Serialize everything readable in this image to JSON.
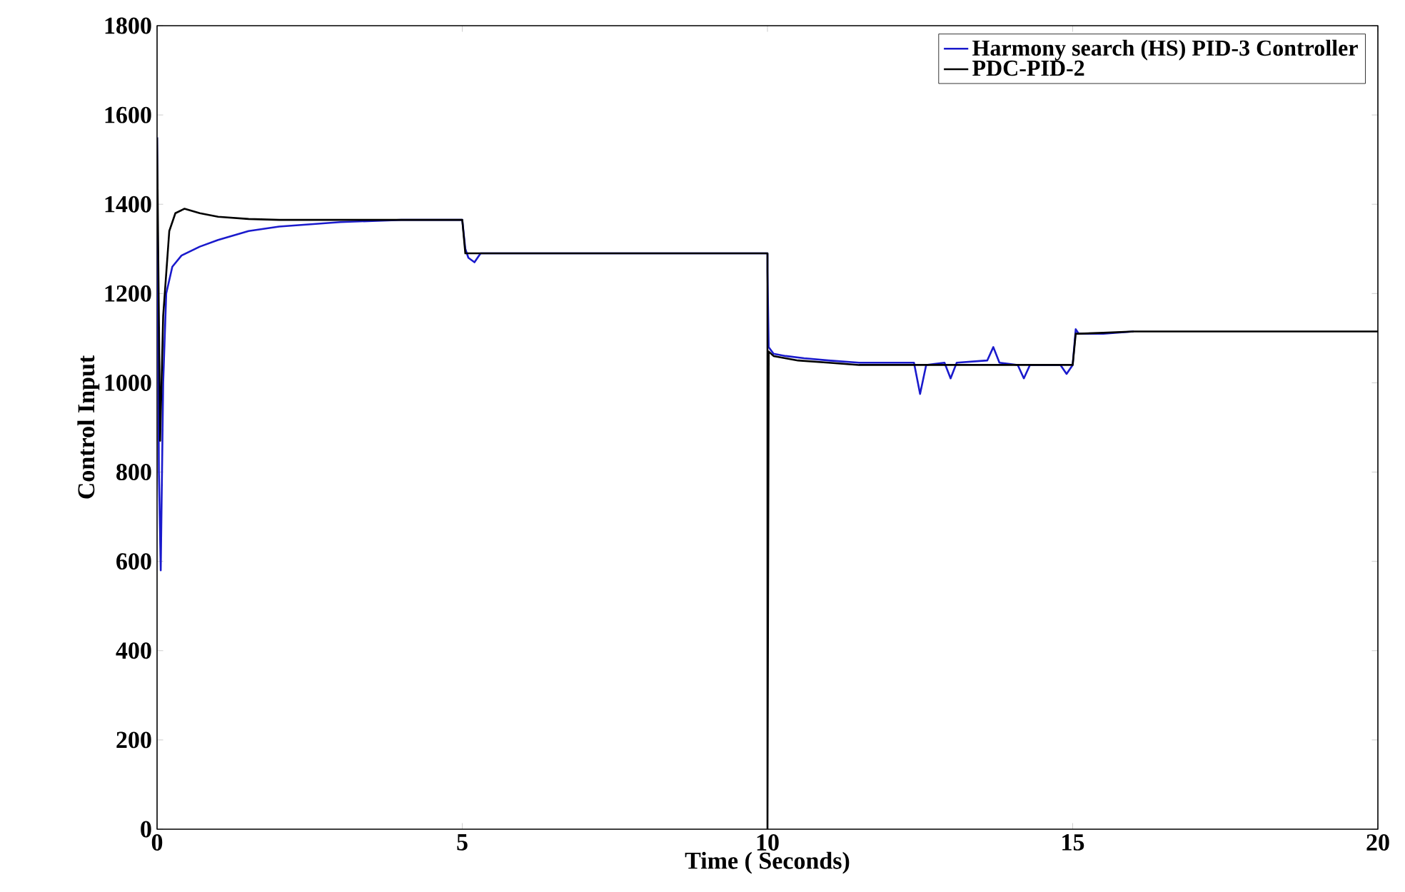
{
  "chart_data": {
    "type": "line",
    "xlabel": "Time ( Seconds)",
    "ylabel": "Control Input",
    "xlim": [
      0,
      20
    ],
    "ylim": [
      0,
      1800
    ],
    "xticks": [
      0,
      5,
      10,
      15,
      20
    ],
    "yticks": [
      0,
      200,
      400,
      600,
      800,
      1000,
      1200,
      1400,
      1600,
      1800
    ],
    "grid": false,
    "legend": "top right",
    "marker": "none",
    "line_style": "solid",
    "series": [
      {
        "name": "Harmony search (HS) PID-3 Controller",
        "color": "#1a1acc",
        "x": [
          0,
          0.03,
          0.06,
          0.1,
          0.15,
          0.25,
          0.4,
          0.7,
          1,
          1.5,
          2,
          3,
          4,
          5,
          5.05,
          5.1,
          5.2,
          5.3,
          5.5,
          7,
          10,
          10.0,
          10.02,
          10.1,
          10.3,
          10.6,
          11,
          11.5,
          12,
          12.4,
          12.5,
          12.6,
          12.9,
          13,
          13.1,
          13.6,
          13.7,
          13.8,
          14.1,
          14.2,
          14.3,
          14.8,
          14.9,
          15,
          15.05,
          15.1,
          15.5,
          16
        ],
        "values": [
          1550,
          800,
          580,
          1000,
          1200,
          1260,
          1285,
          1305,
          1320,
          1340,
          1350,
          1360,
          1365,
          1365,
          1300,
          1280,
          1270,
          1290,
          null,
          null,
          1290,
          1250,
          1080,
          1065,
          1060,
          1055,
          1050,
          1045,
          1045,
          1045,
          975,
          1040,
          1045,
          1010,
          1045,
          1050,
          1080,
          1045,
          1040,
          1010,
          1040,
          1040,
          1020,
          1040,
          1120,
          1110,
          1110,
          1115
        ]
      },
      {
        "name": "PDC-PID-2",
        "color": "#000000",
        "x": [
          0,
          0.05,
          0.1,
          0.2,
          0.3,
          0.45,
          0.7,
          1,
          1.5,
          2,
          3,
          5,
          5.05,
          5.1,
          7,
          10,
          10.0,
          10.02,
          10.1,
          10.5,
          11,
          11.5,
          12,
          15,
          15.05,
          15.1,
          15.5,
          16,
          20
        ],
        "values": [
          1550,
          870,
          1150,
          1340,
          1380,
          1390,
          1380,
          1372,
          1367,
          1365,
          1365,
          1365,
          1290,
          1290,
          1290,
          1290,
          0,
          1070,
          1060,
          1050,
          1045,
          1040,
          1040,
          1040,
          1110,
          1110,
          1112,
          1115,
          1115
        ]
      }
    ]
  }
}
